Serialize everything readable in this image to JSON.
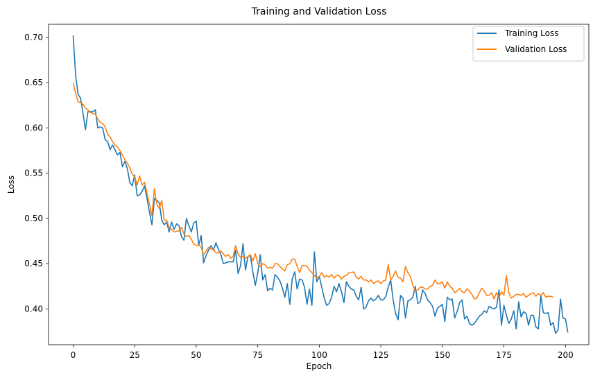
{
  "chart_data": {
    "type": "line",
    "title": "Training and Validation Loss",
    "xlabel": "Epoch",
    "ylabel": "Loss",
    "xlim": [
      -10,
      209.5
    ],
    "ylim": [
      0.3605,
      0.7145
    ],
    "xticks": [
      0,
      25,
      50,
      75,
      100,
      125,
      150,
      175,
      200
    ],
    "xtick_labels": [
      "0",
      "25",
      "50",
      "75",
      "100",
      "125",
      "150",
      "175",
      "200"
    ],
    "yticks": [
      0.4,
      0.45,
      0.5,
      0.55,
      0.6,
      0.65,
      0.7
    ],
    "ytick_labels": [
      "0.40",
      "0.45",
      "0.50",
      "0.55",
      "0.60",
      "0.65",
      "0.70"
    ],
    "grid": false,
    "legend": "top-right",
    "series": [
      {
        "name": "Training Loss",
        "color": "#1f77b4",
        "x_start": 0,
        "x_step": 1,
        "values": [
          0.702,
          0.658,
          0.637,
          0.633,
          0.616,
          0.598,
          0.618,
          0.618,
          0.618,
          0.62,
          0.6,
          0.601,
          0.6,
          0.587,
          0.585,
          0.576,
          0.581,
          0.576,
          0.57,
          0.573,
          0.557,
          0.563,
          0.555,
          0.54,
          0.536,
          0.548,
          0.525,
          0.526,
          0.53,
          0.536,
          0.522,
          0.507,
          0.493,
          0.522,
          0.52,
          0.517,
          0.498,
          0.493,
          0.496,
          0.485,
          0.496,
          0.488,
          0.494,
          0.492,
          0.48,
          0.476,
          0.5,
          0.492,
          0.485,
          0.495,
          0.497,
          0.47,
          0.481,
          0.451,
          0.459,
          0.465,
          0.47,
          0.465,
          0.473,
          0.466,
          0.46,
          0.45,
          0.451,
          0.452,
          0.452,
          0.452,
          0.465,
          0.439,
          0.448,
          0.472,
          0.443,
          0.458,
          0.459,
          0.441,
          0.426,
          0.44,
          0.46,
          0.432,
          0.438,
          0.42,
          0.423,
          0.421,
          0.438,
          0.435,
          0.431,
          0.423,
          0.413,
          0.428,
          0.405,
          0.433,
          0.441,
          0.422,
          0.433,
          0.432,
          0.424,
          0.405,
          0.422,
          0.404,
          0.463,
          0.43,
          0.436,
          0.424,
          0.412,
          0.404,
          0.406,
          0.413,
          0.425,
          0.419,
          0.428,
          0.419,
          0.407,
          0.43,
          0.425,
          0.422,
          0.421,
          0.414,
          0.41,
          0.424,
          0.4,
          0.402,
          0.409,
          0.412,
          0.409,
          0.411,
          0.415,
          0.41,
          0.41,
          0.414,
          0.424,
          0.432,
          0.41,
          0.395,
          0.388,
          0.415,
          0.412,
          0.39,
          0.409,
          0.41,
          0.413,
          0.425,
          0.406,
          0.408,
          0.421,
          0.417,
          0.41,
          0.407,
          0.403,
          0.392,
          0.401,
          0.403,
          0.405,
          0.386,
          0.413,
          0.41,
          0.411,
          0.39,
          0.397,
          0.407,
          0.41,
          0.389,
          0.392,
          0.384,
          0.382,
          0.384,
          0.388,
          0.392,
          0.394,
          0.398,
          0.396,
          0.403,
          0.401,
          0.4,
          0.402,
          0.421,
          0.382,
          0.404,
          0.393,
          0.384,
          0.389,
          0.398,
          0.378,
          0.408,
          0.391,
          0.397,
          0.395,
          0.382,
          0.393,
          0.393,
          0.38,
          0.378,
          0.415,
          0.396,
          0.395,
          0.396,
          0.382,
          0.385,
          0.373,
          0.377,
          0.411,
          0.39,
          0.389,
          0.374
        ]
      },
      {
        "name": "Validation Loss",
        "color": "#ff7f0e",
        "x_start": 0,
        "x_step": 1,
        "values": [
          0.65,
          0.638,
          0.629,
          0.628,
          0.626,
          0.622,
          0.62,
          0.617,
          0.616,
          0.615,
          0.61,
          0.606,
          0.605,
          0.601,
          0.593,
          0.59,
          0.585,
          0.581,
          0.579,
          0.575,
          0.57,
          0.565,
          0.561,
          0.556,
          0.549,
          0.546,
          0.537,
          0.547,
          0.537,
          0.54,
          0.528,
          0.516,
          0.503,
          0.533,
          0.515,
          0.511,
          0.52,
          0.498,
          0.498,
          0.49,
          0.488,
          0.485,
          0.486,
          0.486,
          0.49,
          0.483,
          0.48,
          0.481,
          0.477,
          0.472,
          0.47,
          0.471,
          0.468,
          0.46,
          0.464,
          0.468,
          0.466,
          0.466,
          0.462,
          0.462,
          0.464,
          0.461,
          0.458,
          0.46,
          0.456,
          0.458,
          0.47,
          0.461,
          0.457,
          0.458,
          0.456,
          0.458,
          0.46,
          0.453,
          0.461,
          0.45,
          0.447,
          0.45,
          0.449,
          0.445,
          0.446,
          0.445,
          0.45,
          0.45,
          0.447,
          0.444,
          0.442,
          0.449,
          0.45,
          0.455,
          0.455,
          0.447,
          0.44,
          0.448,
          0.448,
          0.447,
          0.443,
          0.44,
          0.437,
          0.434,
          0.436,
          0.44,
          0.435,
          0.437,
          0.435,
          0.438,
          0.434,
          0.437,
          0.437,
          0.433,
          0.436,
          0.437,
          0.44,
          0.44,
          0.441,
          0.435,
          0.433,
          0.436,
          0.432,
          0.432,
          0.43,
          0.432,
          0.428,
          0.43,
          0.431,
          0.428,
          0.431,
          0.432,
          0.449,
          0.432,
          0.436,
          0.442,
          0.435,
          0.434,
          0.43,
          0.447,
          0.44,
          0.436,
          0.426,
          0.42,
          0.421,
          0.424,
          0.424,
          0.422,
          0.422,
          0.425,
          0.426,
          0.432,
          0.428,
          0.428,
          0.43,
          0.423,
          0.43,
          0.425,
          0.423,
          0.418,
          0.42,
          0.423,
          0.419,
          0.418,
          0.422,
          0.42,
          0.416,
          0.411,
          0.412,
          0.418,
          0.423,
          0.42,
          0.415,
          0.415,
          0.418,
          0.411,
          0.418,
          0.413,
          0.419,
          0.415,
          0.437,
          0.418,
          0.412,
          0.414,
          0.416,
          0.416,
          0.415,
          0.417,
          0.413,
          0.415,
          0.417,
          0.418,
          0.414,
          0.417,
          0.415,
          0.418,
          0.413,
          0.414,
          0.414,
          0.413
        ]
      }
    ]
  }
}
